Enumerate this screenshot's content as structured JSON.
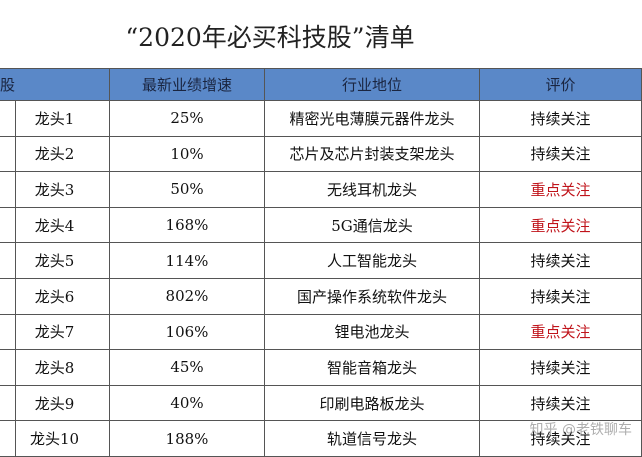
{
  "header": {
    "title": "“2020年必买科技股”清单"
  },
  "table": {
    "columns": [
      "股",
      "最新业绩增速",
      "行业地位",
      "评价"
    ],
    "rows": [
      [
        "龙头1",
        "25%",
        "精密光电薄膜元器件龙头",
        "持续关注"
      ],
      [
        "龙头2",
        "10%",
        "芯片及芯片封装支架龙头",
        "持续关注"
      ],
      [
        "龙头3",
        "50%",
        "无线耳机龙头",
        "重点关注"
      ],
      [
        "龙头4",
        "168%",
        "5G通信龙头",
        "重点关注"
      ],
      [
        "龙头5",
        "114%",
        "人工智能龙头",
        "持续关注"
      ],
      [
        "龙头6",
        "802%",
        "国产操作系统软件龙头",
        "持续关注"
      ],
      [
        "龙头7",
        "106%",
        "锂电池龙头",
        "重点关注"
      ],
      [
        "龙头8",
        "45%",
        "智能音箱龙头",
        "持续关注"
      ],
      [
        "龙头9",
        "40%",
        "印刷电路板龙头",
        "持续关注"
      ],
      [
        "龙头10",
        "188%",
        "轨道信号龙头",
        "持续关注"
      ]
    ]
  },
  "watermark": "知乎 @老铁聊车"
}
